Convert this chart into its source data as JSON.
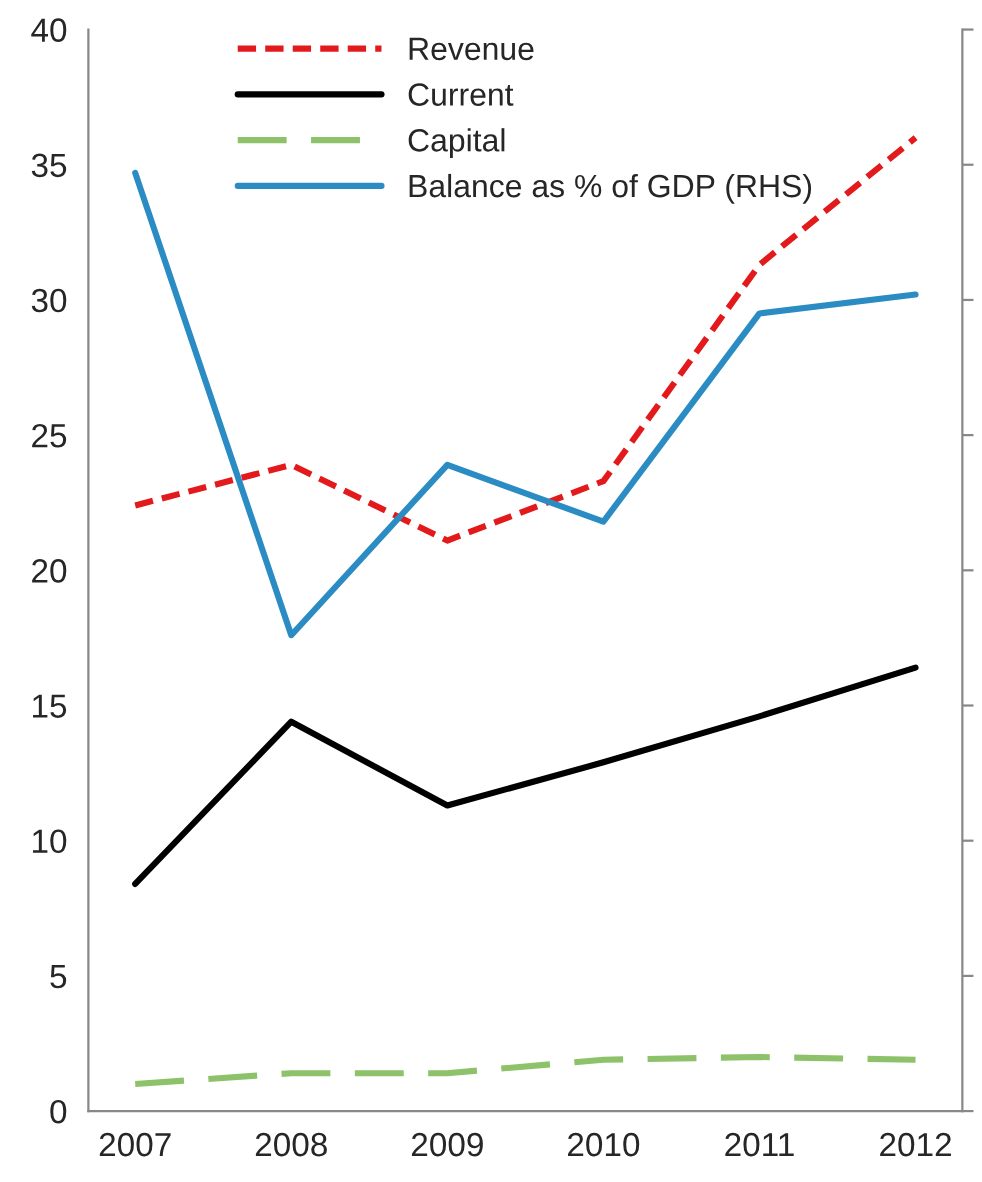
{
  "chart_data": {
    "type": "line",
    "categories": [
      "2007",
      "2008",
      "2009",
      "2010",
      "2011",
      "2012"
    ],
    "series": [
      {
        "name": "Revenue",
        "color": "#e31a1c",
        "line_style": "dotted",
        "values": [
          22.4,
          23.9,
          21.1,
          23.3,
          31.3,
          36.0
        ]
      },
      {
        "name": "Current",
        "color": "#000000",
        "line_style": "solid",
        "values": [
          8.4,
          14.4,
          11.3,
          12.9,
          14.6,
          16.4
        ]
      },
      {
        "name": "Capital",
        "color": "#8dc26a",
        "line_style": "dashed",
        "values": [
          1.0,
          1.4,
          1.4,
          1.9,
          2.0,
          1.9
        ]
      },
      {
        "name": "Balance as % of GDP (RHS)",
        "color": "#2b8cc4",
        "line_style": "solid",
        "values": [
          34.7,
          17.6,
          23.9,
          21.8,
          29.5,
          30.2
        ]
      }
    ],
    "ylim": [
      0,
      40
    ],
    "yticks": [
      0,
      5,
      10,
      15,
      20,
      25,
      30,
      35,
      40
    ],
    "legend": "top",
    "grid": false,
    "marker": "none"
  }
}
